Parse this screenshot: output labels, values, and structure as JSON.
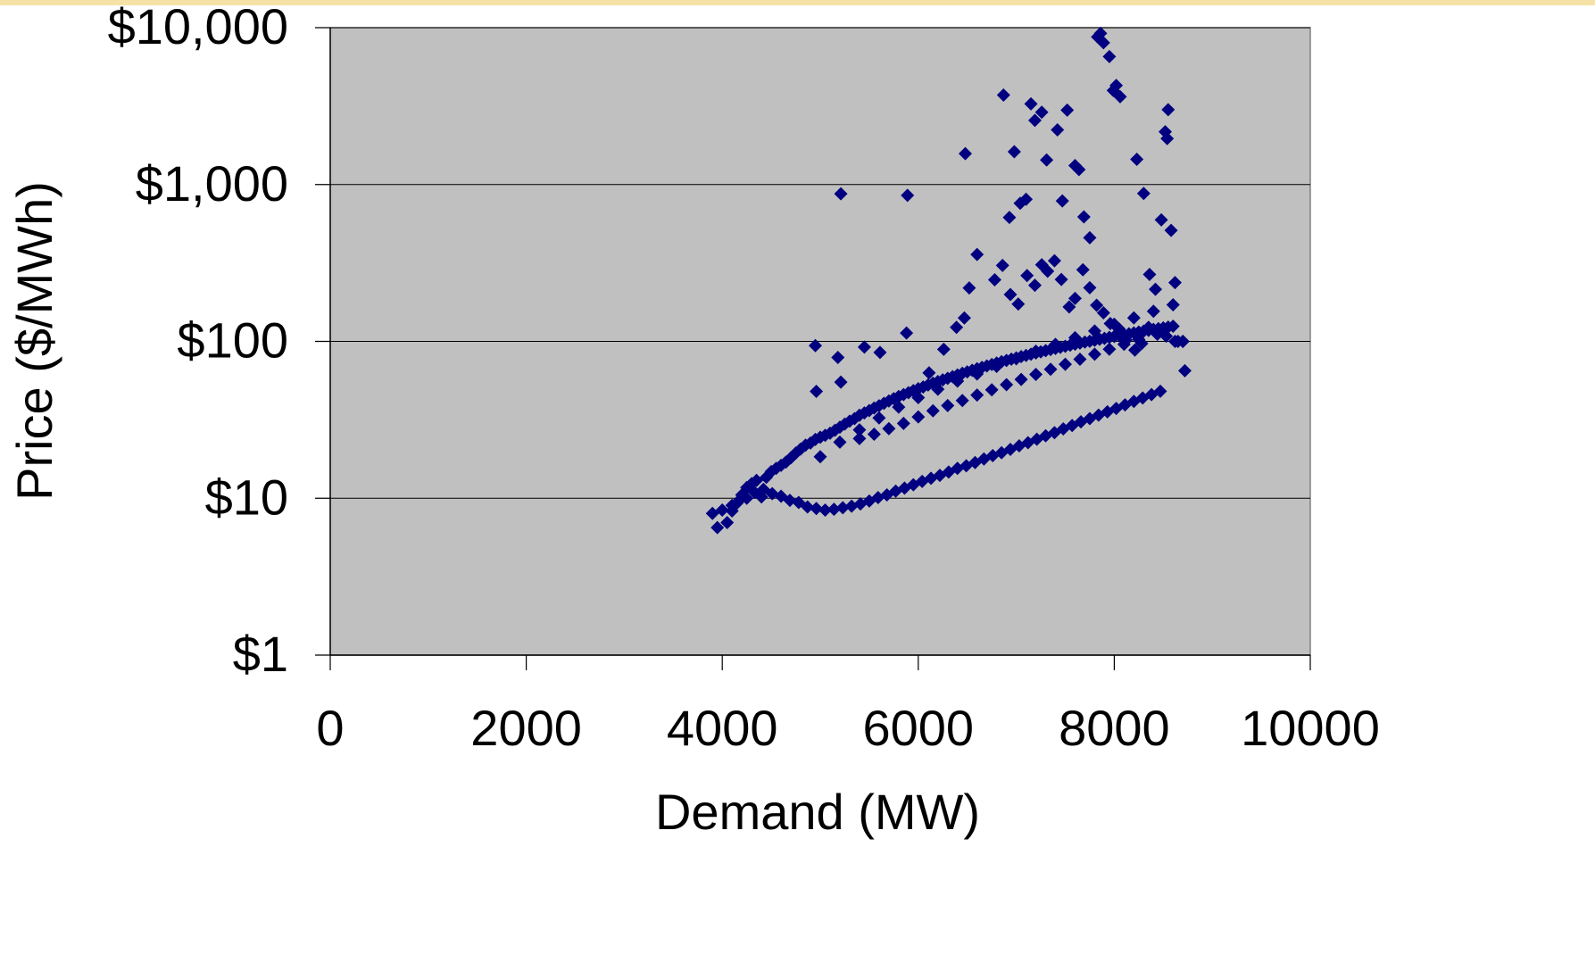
{
  "chart_data": {
    "type": "scatter",
    "xlabel": "Demand (MW)",
    "ylabel": "Price ($/MWh)",
    "x_ticks": [
      0,
      2000,
      4000,
      6000,
      8000,
      10000
    ],
    "x_tick_labels": [
      "0",
      "2000",
      "4000",
      "6000",
      "8000",
      "10000"
    ],
    "y_ticks": [
      1,
      10,
      100,
      1000,
      10000
    ],
    "y_tick_labels": [
      "$1",
      "$10",
      "$100",
      "$1,000",
      "$10,000"
    ],
    "xlim": [
      0,
      10000
    ],
    "ylim": [
      1,
      10000
    ],
    "y_scale": "log",
    "grid": "horizontal major gridlines",
    "legend": "none",
    "colors": {
      "plot_background": "#c0c0c0",
      "marker": "#000080",
      "gridline": "#000000",
      "top_strip": "#f6e2a6"
    },
    "series": [
      {
        "marker": "diamond",
        "points": [
          [
            3900,
            8.0
          ],
          [
            3950,
            6.5
          ],
          [
            4000,
            8.4
          ],
          [
            4050,
            7.0
          ],
          [
            4100,
            8.3
          ],
          [
            4150,
            9.3
          ],
          [
            4200,
            10.5
          ],
          [
            4250,
            11.7
          ],
          [
            4300,
            12.4
          ],
          [
            4350,
            13.0
          ],
          [
            4400,
            10.2
          ],
          [
            4450,
            13.6
          ],
          [
            4500,
            14.8
          ],
          [
            4550,
            15.5
          ],
          [
            4600,
            16.2
          ],
          [
            4650,
            17.0
          ],
          [
            4700,
            18.1
          ],
          [
            4750,
            19.4
          ],
          [
            4800,
            20.6
          ],
          [
            4850,
            21.8
          ],
          [
            4900,
            22.5
          ],
          [
            4950,
            23.7
          ],
          [
            5000,
            24.5
          ],
          [
            5050,
            25.2
          ],
          [
            5100,
            26.0
          ],
          [
            5150,
            27.1
          ],
          [
            5200,
            28.4
          ],
          [
            5250,
            29.7
          ],
          [
            5300,
            31.0
          ],
          [
            5350,
            32.2
          ],
          [
            5400,
            33.8
          ],
          [
            5450,
            35.0
          ],
          [
            5500,
            36.2
          ],
          [
            5550,
            37.6
          ],
          [
            5600,
            38.9
          ],
          [
            5650,
            40.3
          ],
          [
            5700,
            41.7
          ],
          [
            5750,
            43.2
          ],
          [
            5800,
            44.5
          ],
          [
            5850,
            45.8
          ],
          [
            5900,
            47.1
          ],
          [
            5950,
            48.6
          ],
          [
            6000,
            49.9
          ],
          [
            6050,
            51.2
          ],
          [
            6100,
            52.7
          ],
          [
            6150,
            54.1
          ],
          [
            6200,
            55.5
          ],
          [
            6250,
            56.8
          ],
          [
            6300,
            58.2
          ],
          [
            6350,
            59.6
          ],
          [
            6400,
            61.1
          ],
          [
            6450,
            62.6
          ],
          [
            6500,
            64.0
          ],
          [
            6550,
            65.4
          ],
          [
            6600,
            66.9
          ],
          [
            6650,
            68.3
          ],
          [
            6700,
            69.8
          ],
          [
            6750,
            71.3
          ],
          [
            6800,
            72.8
          ],
          [
            6850,
            74.2
          ],
          [
            6900,
            75.6
          ],
          [
            6950,
            77.1
          ],
          [
            7000,
            78.5
          ],
          [
            7050,
            80.0
          ],
          [
            7100,
            81.4
          ],
          [
            7150,
            82.9
          ],
          [
            7200,
            84.3
          ],
          [
            7250,
            85.8
          ],
          [
            7300,
            87.3
          ],
          [
            7350,
            88.8
          ],
          [
            7400,
            90.2
          ],
          [
            7450,
            91.7
          ],
          [
            7500,
            93.1
          ],
          [
            7550,
            94.6
          ],
          [
            7600,
            96.0
          ],
          [
            7650,
            97.5
          ],
          [
            7700,
            99.0
          ],
          [
            7750,
            100.2
          ],
          [
            7800,
            101.7
          ],
          [
            7850,
            103.1
          ],
          [
            7900,
            104.6
          ],
          [
            7950,
            106.0
          ],
          [
            8000,
            107.5
          ],
          [
            8050,
            108.9
          ],
          [
            8100,
            110.4
          ],
          [
            8150,
            111.8
          ],
          [
            8200,
            113.3
          ],
          [
            8250,
            114.7
          ],
          [
            8300,
            116.2
          ],
          [
            8350,
            117.6
          ],
          [
            8400,
            119.1
          ],
          [
            8450,
            120.5
          ],
          [
            8500,
            122.0
          ],
          [
            8550,
            123.4
          ],
          [
            8600,
            124.9
          ],
          [
            8650,
            100.0
          ],
          [
            8700,
            100.0
          ],
          [
            4100,
            9.0
          ],
          [
            4180,
            9.8
          ],
          [
            4250,
            10.0
          ],
          [
            4330,
            10.9
          ],
          [
            4420,
            11.4
          ],
          [
            4510,
            10.7
          ],
          [
            4600,
            10.3
          ],
          [
            4690,
            9.7
          ],
          [
            4780,
            9.4
          ],
          [
            4870,
            8.8
          ],
          [
            4960,
            8.6
          ],
          [
            5050,
            8.4
          ],
          [
            5140,
            8.5
          ],
          [
            5230,
            8.7
          ],
          [
            5320,
            8.9
          ],
          [
            5410,
            9.2
          ],
          [
            5500,
            9.6
          ],
          [
            5590,
            10.1
          ],
          [
            5680,
            10.5
          ],
          [
            5770,
            11.1
          ],
          [
            5860,
            11.6
          ],
          [
            5950,
            12.2
          ],
          [
            6040,
            12.8
          ],
          [
            6130,
            13.4
          ],
          [
            6220,
            14.0
          ],
          [
            6310,
            14.7
          ],
          [
            6400,
            15.5
          ],
          [
            6490,
            16.1
          ],
          [
            6580,
            16.9
          ],
          [
            6670,
            17.8
          ],
          [
            6760,
            18.7
          ],
          [
            6850,
            19.5
          ],
          [
            6940,
            20.5
          ],
          [
            7030,
            21.6
          ],
          [
            7120,
            22.6
          ],
          [
            7210,
            23.8
          ],
          [
            7300,
            25.0
          ],
          [
            7390,
            26.2
          ],
          [
            7480,
            27.7
          ],
          [
            7570,
            29.1
          ],
          [
            7660,
            30.7
          ],
          [
            7750,
            32.2
          ],
          [
            7840,
            33.9
          ],
          [
            7930,
            35.6
          ],
          [
            8020,
            37.4
          ],
          [
            8110,
            39.4
          ],
          [
            8200,
            41.4
          ],
          [
            8290,
            43.6
          ],
          [
            8380,
            45.8
          ],
          [
            8470,
            48.1
          ],
          [
            5000,
            18.4
          ],
          [
            5200,
            22.8
          ],
          [
            5400,
            27.3
          ],
          [
            5600,
            32.5
          ],
          [
            5800,
            38.1
          ],
          [
            6000,
            43.8
          ],
          [
            6200,
            49.5
          ],
          [
            6400,
            55.8
          ],
          [
            6600,
            62.0
          ],
          [
            6800,
            69.3
          ],
          [
            7000,
            77.5
          ],
          [
            7200,
            86.6
          ],
          [
            7400,
            95.7
          ],
          [
            7600,
            105.6
          ],
          [
            7800,
            116.5
          ],
          [
            8000,
            128.4
          ],
          [
            8200,
            141.3
          ],
          [
            8400,
            155.7
          ],
          [
            8600,
            171.2
          ],
          [
            5400,
            24.0
          ],
          [
            5550,
            25.6
          ],
          [
            5700,
            27.8
          ],
          [
            5850,
            30.0
          ],
          [
            6000,
            33.0
          ],
          [
            6150,
            36.1
          ],
          [
            6300,
            39.0
          ],
          [
            6450,
            42.0
          ],
          [
            6600,
            45.5
          ],
          [
            6750,
            49.1
          ],
          [
            6900,
            53.0
          ],
          [
            7050,
            57.2
          ],
          [
            7200,
            61.6
          ],
          [
            7350,
            66.4
          ],
          [
            7500,
            71.5
          ],
          [
            7650,
            77.0
          ],
          [
            7800,
            82.8
          ],
          [
            7950,
            89.1
          ],
          [
            8100,
            95.8
          ],
          [
            8250,
            102.9
          ],
          [
            4960,
            48.0
          ],
          [
            4950,
            94.0
          ],
          [
            5180,
            79.0
          ],
          [
            5210,
            55.0
          ],
          [
            5450,
            92.0
          ],
          [
            5610,
            85.0
          ],
          [
            5880,
            113.0
          ],
          [
            6110,
            63.0
          ],
          [
            6260,
            89.0
          ],
          [
            6390,
            123.0
          ],
          [
            6470,
            141.0
          ],
          [
            6520,
            219.0
          ],
          [
            6600,
            358.0
          ],
          [
            6780,
            247.0
          ],
          [
            6860,
            305.0
          ],
          [
            6940,
            199.0
          ],
          [
            7020,
            173.0
          ],
          [
            7110,
            263.0
          ],
          [
            7190,
            228.0
          ],
          [
            7260,
            308.0
          ],
          [
            7320,
            280.0
          ],
          [
            7390,
            327.0
          ],
          [
            7460,
            248.0
          ],
          [
            7540,
            166.0
          ],
          [
            7600,
            188.0
          ],
          [
            7680,
            286.0
          ],
          [
            7750,
            220.0
          ],
          [
            7820,
            170.0
          ],
          [
            7890,
            152.0
          ],
          [
            7960,
            130.0
          ],
          [
            8050,
            120.0
          ],
          [
            8120,
            102.0
          ],
          [
            8210,
            88.0
          ],
          [
            8280,
            97.0
          ],
          [
            8350,
            123.0
          ],
          [
            8440,
            111.0
          ],
          [
            8530,
            108.0
          ],
          [
            8620,
            100.0
          ],
          [
            8700,
            100.0
          ],
          [
            8720,
            65.0
          ],
          [
            5210,
            873.0
          ],
          [
            5890,
            853.0
          ],
          [
            6480,
            1574.0
          ],
          [
            6870,
            3716.0
          ],
          [
            6930,
            617.0
          ],
          [
            6980,
            1618.0
          ],
          [
            7040,
            760.0
          ],
          [
            7100,
            805.0
          ],
          [
            7150,
            3267.0
          ],
          [
            7190,
            2564.0
          ],
          [
            7260,
            2892.0
          ],
          [
            7310,
            1433.0
          ],
          [
            7420,
            2232.0
          ],
          [
            7470,
            786.0
          ],
          [
            7520,
            2980.0
          ],
          [
            7600,
            1321.0
          ],
          [
            7640,
            1246.0
          ],
          [
            7690,
            622.0
          ],
          [
            7750,
            458.0
          ],
          [
            7830,
            8730.0
          ],
          [
            7860,
            9200.0
          ],
          [
            7890,
            8020.0
          ],
          [
            7950,
            6540.0
          ],
          [
            7990,
            3980.0
          ],
          [
            8020,
            4280.0
          ],
          [
            8060,
            3630.0
          ],
          [
            8230,
            1447.0
          ],
          [
            8300,
            877.0
          ],
          [
            8360,
            267.0
          ],
          [
            8420,
            215.0
          ],
          [
            8480,
            595.0
          ],
          [
            8520,
            2170.0
          ],
          [
            8540,
            1963.0
          ],
          [
            8550,
            3000.0
          ],
          [
            8580,
            510.0
          ],
          [
            8620,
            237.0
          ]
        ]
      }
    ]
  }
}
